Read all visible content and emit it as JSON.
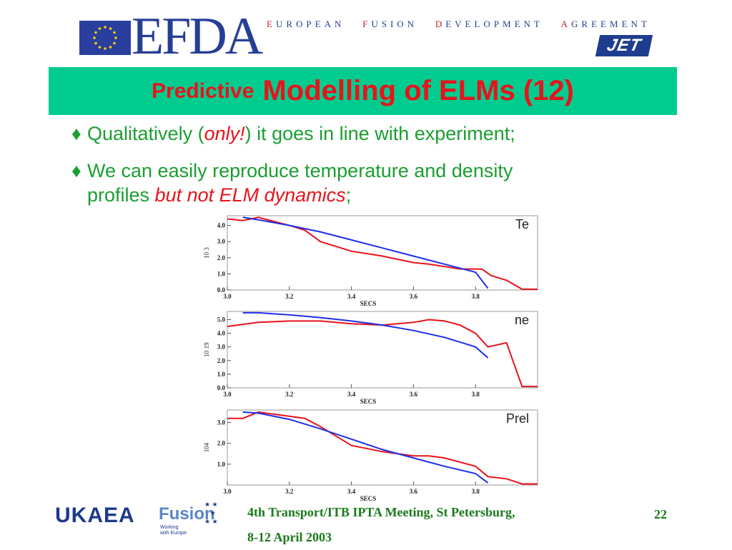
{
  "header": {
    "logo_text": "EFDA",
    "agreement_words": [
      {
        "initial": "E",
        "rest": "UROPEAN"
      },
      {
        "initial": "F",
        "rest": "USION"
      },
      {
        "initial": "D",
        "rest": "EVELOPMENT"
      },
      {
        "initial": "A",
        "rest": "GREEMENT"
      }
    ],
    "jet_logo": "JET"
  },
  "slide": {
    "title_small": "Predictive",
    "title_big": "Modelling of ELMs (12)",
    "bullet_glyph": "♦",
    "bullets": [
      {
        "pre": "Qualitatively (",
        "emph": "only!",
        "post": ") it goes in line with experiment;"
      },
      {
        "pre": "We can easily reproduce temperature and density",
        "line2_pre": "profiles ",
        "emph": "but not ELM dynamics",
        "post": ";"
      }
    ]
  },
  "chart_data": [
    {
      "type": "line",
      "panel_label": "Te",
      "xlabel": "SECS",
      "ylabel": "10 3",
      "xlim": [
        3.0,
        4.0
      ],
      "ylim": [
        0.0,
        4.6
      ],
      "xticks": [
        3.0,
        3.2,
        3.4,
        3.6,
        3.8
      ],
      "xtick_labels": [
        "3.0",
        "3.2",
        "3.4",
        "3.6",
        "3.8"
      ],
      "yticks": [
        0.0,
        1.0,
        2.0,
        3.0,
        4.0
      ],
      "ytick_labels": [
        "0.0",
        "1.0",
        "2.0",
        "3.0",
        "4.0"
      ],
      "series": [
        {
          "color": "#e8131b",
          "x": [
            3.0,
            3.05,
            3.1,
            3.2,
            3.25,
            3.3,
            3.4,
            3.5,
            3.6,
            3.65,
            3.75,
            3.82,
            3.85,
            3.9,
            3.95,
            4.0
          ],
          "y": [
            4.4,
            4.3,
            4.5,
            4.0,
            3.7,
            3.0,
            2.4,
            2.1,
            1.7,
            1.6,
            1.3,
            1.3,
            0.9,
            0.6,
            0.05,
            0.05
          ]
        },
        {
          "color": "#1f2ee8",
          "x": [
            3.05,
            3.1,
            3.2,
            3.3,
            3.4,
            3.5,
            3.6,
            3.7,
            3.8,
            3.82,
            3.84
          ],
          "y": [
            4.5,
            4.35,
            4.0,
            3.6,
            3.1,
            2.6,
            2.1,
            1.6,
            1.1,
            0.6,
            0.1
          ]
        }
      ]
    },
    {
      "type": "line",
      "panel_label": "ne",
      "xlabel": "SECS",
      "ylabel": "10 19",
      "xlim": [
        3.0,
        4.0
      ],
      "ylim": [
        0.0,
        5.6
      ],
      "xticks": [
        3.0,
        3.2,
        3.4,
        3.6,
        3.8
      ],
      "xtick_labels": [
        "3.0",
        "3.2",
        "3.4",
        "3.6",
        "3.8"
      ],
      "yticks": [
        0.0,
        1.0,
        2.0,
        3.0,
        4.0,
        5.0
      ],
      "ytick_labels": [
        "0.0",
        "1.0",
        "2.0",
        "3.0",
        "4.0",
        "5.0"
      ],
      "series": [
        {
          "color": "#e8131b",
          "x": [
            3.0,
            3.1,
            3.2,
            3.3,
            3.4,
            3.5,
            3.6,
            3.65,
            3.7,
            3.75,
            3.8,
            3.84,
            3.9,
            3.95,
            4.0
          ],
          "y": [
            4.5,
            4.8,
            4.9,
            4.9,
            4.7,
            4.6,
            4.8,
            5.0,
            4.9,
            4.6,
            4.0,
            3.0,
            3.3,
            0.1,
            0.1
          ]
        },
        {
          "color": "#1f2ee8",
          "x": [
            3.05,
            3.1,
            3.2,
            3.3,
            3.4,
            3.5,
            3.6,
            3.7,
            3.8,
            3.84
          ],
          "y": [
            5.5,
            5.5,
            5.35,
            5.15,
            4.9,
            4.6,
            4.2,
            3.7,
            3.0,
            2.2
          ]
        }
      ]
    },
    {
      "type": "line",
      "panel_label": "Prel",
      "xlabel": "SECS",
      "ylabel": "104",
      "xlim": [
        3.0,
        4.0
      ],
      "ylim": [
        0.0,
        3.6
      ],
      "xticks": [
        3.0,
        3.2,
        3.4,
        3.6,
        3.8
      ],
      "xtick_labels": [
        "3.0",
        "3.2",
        "3.4",
        "3.6",
        "3.8"
      ],
      "yticks": [
        1.0,
        2.0,
        3.0
      ],
      "ytick_labels": [
        "1.0",
        "2.0",
        "3.0"
      ],
      "series": [
        {
          "color": "#e8131b",
          "x": [
            3.0,
            3.05,
            3.1,
            3.2,
            3.25,
            3.3,
            3.4,
            3.5,
            3.6,
            3.65,
            3.7,
            3.8,
            3.84,
            3.9,
            3.95,
            4.0
          ],
          "y": [
            3.2,
            3.2,
            3.5,
            3.3,
            3.2,
            2.8,
            1.9,
            1.6,
            1.4,
            1.4,
            1.3,
            0.9,
            0.4,
            0.3,
            0.05,
            0.05
          ]
        },
        {
          "color": "#1f2ee8",
          "x": [
            3.05,
            3.1,
            3.2,
            3.3,
            3.4,
            3.5,
            3.6,
            3.7,
            3.8,
            3.84
          ],
          "y": [
            3.5,
            3.45,
            3.15,
            2.7,
            2.2,
            1.7,
            1.3,
            0.9,
            0.55,
            0.1
          ]
        }
      ]
    }
  ],
  "footer": {
    "ukaea_logo": "UKAEA",
    "fusion_logo": "Fusion",
    "fusion_tag_1": "Working",
    "fusion_tag_2": "with Europe",
    "meeting_line1": "4th Transport/ITB IPTA Meeting, St Petersburg,",
    "meeting_line2": "8-12 April 2003",
    "page_number": "22"
  },
  "colors": {
    "title_bar": "#00cc8f",
    "title_text": "#e8131b",
    "bullet_text": "#1b9e31",
    "efda_blue": "#263f96",
    "experiment_line": "#e8131b",
    "model_line": "#1f2ee8"
  }
}
